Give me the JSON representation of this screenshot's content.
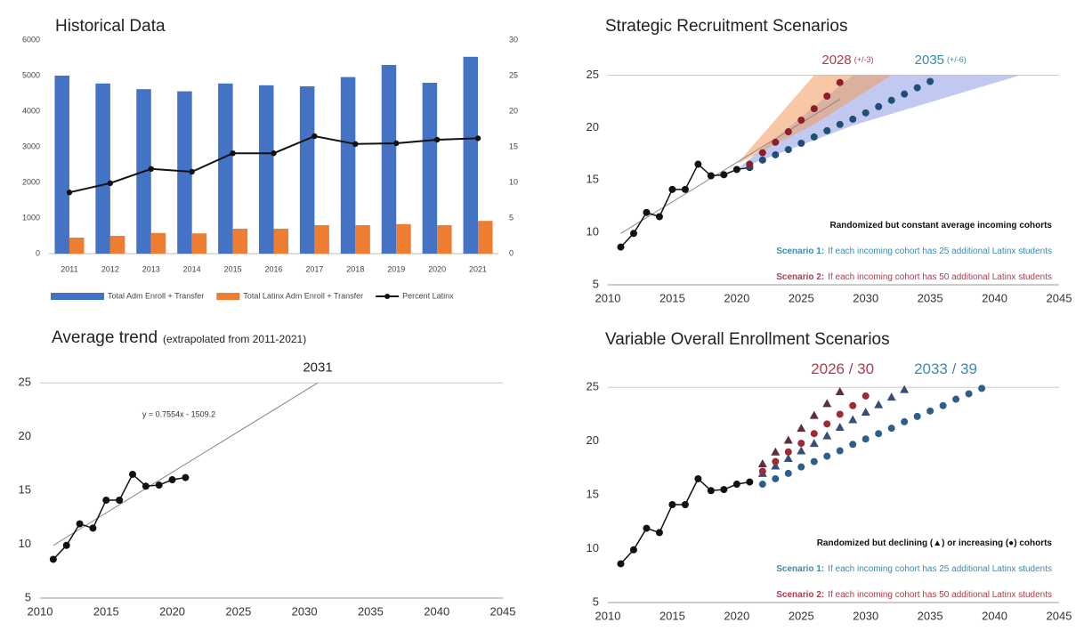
{
  "chart_data": [
    {
      "type": "bar",
      "title": "Historical Data",
      "categories": [
        "2011",
        "2012",
        "2013",
        "2014",
        "2015",
        "2016",
        "2017",
        "2018",
        "2019",
        "2020",
        "2021"
      ],
      "series": [
        {
          "name": "Total Adm Enroll + Transfer",
          "color": "#4472c4",
          "values": [
            5000,
            4780,
            4620,
            4560,
            4780,
            4730,
            4700,
            4960,
            5300,
            4800,
            5530
          ]
        },
        {
          "name": "Total Latinx Adm Enroll + Transfer",
          "color": "#ed7d31",
          "values": [
            450,
            500,
            580,
            570,
            700,
            700,
            800,
            800,
            830,
            800,
            920
          ]
        },
        {
          "name": "Percent Latinx",
          "color": "#111111",
          "axis": "y2",
          "type": "line",
          "values": [
            8.6,
            9.9,
            11.9,
            11.5,
            14.1,
            14.1,
            16.5,
            15.4,
            15.5,
            16.0,
            16.2
          ]
        }
      ],
      "ylim": [
        0,
        6000
      ],
      "yticks": [
        0,
        1000,
        2000,
        3000,
        4000,
        5000,
        6000
      ],
      "y2lim": [
        0,
        30
      ],
      "y2ticks": [
        0,
        5,
        10,
        15,
        20,
        25,
        30
      ],
      "legend": "bottom"
    },
    {
      "type": "scatter",
      "title": "Average trend",
      "title_note": "(extrapolated from 2011-2021)",
      "xlim": [
        2010,
        2045
      ],
      "xticks": [
        2010,
        2015,
        2020,
        2025,
        2030,
        2035,
        2040,
        2045
      ],
      "ylim": [
        5,
        27.5
      ],
      "yticks": [
        5,
        10,
        15,
        20,
        25
      ],
      "threshold": 25,
      "trend": {
        "x": [
          2011,
          2031
        ],
        "values": [
          9.9,
          25
        ]
      },
      "series": [
        {
          "color": "#111111",
          "marker": "circle",
          "line": true,
          "x": [
            2011,
            2012,
            2013,
            2014,
            2015,
            2016,
            2017,
            2018,
            2019,
            2020,
            2021
          ],
          "values": [
            8.6,
            9.9,
            11.9,
            11.5,
            14.1,
            14.1,
            16.5,
            15.4,
            15.5,
            16.0,
            16.2
          ]
        }
      ],
      "annotations": [
        {
          "text": "2031",
          "color": "#222222"
        },
        {
          "text": "y = 0.7554x - 1509.2",
          "color": "#333333"
        }
      ]
    },
    {
      "type": "scatter",
      "title": "Strategic Recruitment Scenarios",
      "xlim": [
        2010,
        2045
      ],
      "xticks": [
        2010,
        2015,
        2020,
        2025,
        2030,
        2035,
        2040,
        2045
      ],
      "ylim": [
        5,
        27.5
      ],
      "yticks": [
        5,
        10,
        15,
        20,
        25
      ],
      "threshold": 25,
      "trend": {
        "x": [
          2011,
          2028
        ],
        "values": [
          9.9,
          22.7
        ]
      },
      "bands": [
        {
          "color": "#8e9de3",
          "x": [
            2020,
            2029,
            2042
          ],
          "lower": [
            16,
            20.2,
            25
          ],
          "upper": [
            16,
            25,
            25
          ]
        },
        {
          "color": "#f39a5c",
          "x": [
            2020,
            2026,
            2032
          ],
          "lower": [
            16.5,
            20.3,
            25
          ],
          "upper": [
            16.5,
            25,
            25
          ]
        }
      ],
      "series": [
        {
          "color": "#111111",
          "marker": "circle",
          "line": true,
          "x": [
            2011,
            2012,
            2013,
            2014,
            2015,
            2016,
            2017,
            2018,
            2019,
            2020,
            2021
          ],
          "values": [
            8.6,
            9.9,
            11.9,
            11.5,
            14.1,
            14.1,
            16.5,
            15.4,
            15.5,
            16.0,
            16.2
          ]
        },
        {
          "color": "#1f4e79",
          "marker": "circle",
          "x": [
            2021,
            2022,
            2023,
            2024,
            2025,
            2026,
            2027,
            2028,
            2029,
            2030,
            2031,
            2032,
            2033,
            2034,
            2035
          ],
          "values": [
            16.3,
            16.9,
            17.4,
            17.9,
            18.5,
            19.1,
            19.7,
            20.3,
            20.8,
            21.4,
            22.0,
            22.6,
            23.2,
            23.8,
            24.4
          ]
        },
        {
          "color": "#8b1e2d",
          "marker": "circle",
          "x": [
            2021,
            2022,
            2023,
            2024,
            2025,
            2026,
            2027,
            2028
          ],
          "values": [
            16.5,
            17.6,
            18.6,
            19.6,
            20.7,
            21.8,
            23.0,
            24.3
          ]
        }
      ],
      "annotations": [
        {
          "text": "2028",
          "note": "(+/-3)",
          "color": "#b03a4e"
        },
        {
          "text": "2035",
          "note": "(+/-6)",
          "color": "#3b8bb0"
        }
      ],
      "notes": [
        {
          "text": "Randomized but constant average incoming cohorts",
          "color": "#111111"
        },
        {
          "label": "Scenario 1:",
          "text": "If each incoming cohort has 25 additional Latinx students",
          "color": "#3b8bb0"
        },
        {
          "label": "Scenario 2:",
          "text": "If each incoming cohort has 50 additional Latinx students",
          "color": "#b03a4e"
        }
      ]
    },
    {
      "type": "scatter",
      "title": "Variable Overall Enrollment Scenarios",
      "xlim": [
        2010,
        2045
      ],
      "xticks": [
        2010,
        2015,
        2020,
        2025,
        2030,
        2035,
        2040,
        2045
      ],
      "ylim": [
        5,
        27.5
      ],
      "yticks": [
        5,
        10,
        15,
        20,
        25
      ],
      "threshold": 25,
      "series": [
        {
          "color": "#111111",
          "marker": "circle",
          "line": true,
          "x": [
            2011,
            2012,
            2013,
            2014,
            2015,
            2016,
            2017,
            2018,
            2019,
            2020,
            2021
          ],
          "values": [
            8.6,
            9.9,
            11.9,
            11.5,
            14.1,
            14.1,
            16.5,
            15.4,
            15.5,
            16.0,
            16.2
          ]
        },
        {
          "color": "#2e5f8a",
          "marker": "circle",
          "x": [
            2022,
            2023,
            2024,
            2025,
            2026,
            2027,
            2028,
            2029,
            2030,
            2031,
            2032,
            2033,
            2034,
            2035,
            2036,
            2037,
            2038,
            2039
          ],
          "values": [
            16.0,
            16.5,
            17.0,
            17.6,
            18.1,
            18.6,
            19.1,
            19.7,
            20.2,
            20.7,
            21.2,
            21.8,
            22.3,
            22.8,
            23.3,
            23.9,
            24.4,
            24.9
          ]
        },
        {
          "color": "#34507a",
          "marker": "triangle",
          "x": [
            2022,
            2023,
            2024,
            2025,
            2026,
            2027,
            2028,
            2029,
            2030,
            2031,
            2032,
            2033
          ],
          "values": [
            17.0,
            17.7,
            18.4,
            19.1,
            19.8,
            20.5,
            21.3,
            22.0,
            22.7,
            23.4,
            24.1,
            24.8
          ]
        },
        {
          "color": "#9c2b34",
          "marker": "circle",
          "x": [
            2022,
            2023,
            2024,
            2025,
            2026,
            2027,
            2028,
            2029,
            2030
          ],
          "values": [
            17.2,
            18.1,
            19.0,
            19.8,
            20.7,
            21.6,
            22.5,
            23.3,
            24.2
          ]
        },
        {
          "color": "#5a2f3e",
          "marker": "triangle",
          "x": [
            2022,
            2023,
            2024,
            2025,
            2026,
            2027,
            2028
          ],
          "values": [
            17.9,
            19.0,
            20.1,
            21.2,
            22.4,
            23.5,
            24.6
          ]
        }
      ],
      "annotations": [
        {
          "text": "2026 / 30",
          "color": "#b03a4e"
        },
        {
          "text": "2033 / 39",
          "color": "#3b8bb0"
        }
      ],
      "notes": [
        {
          "text": "Randomized but declining (▲) or increasing (●) cohorts",
          "color": "#111111"
        },
        {
          "label": "Scenario 1:",
          "text": "If each incoming cohort has 25 additional Latinx students",
          "color": "#3b8bb0"
        },
        {
          "label": "Scenario 2:",
          "text": "If each incoming cohort has 50 additional Latinx students",
          "color": "#b03a4e"
        }
      ]
    }
  ]
}
